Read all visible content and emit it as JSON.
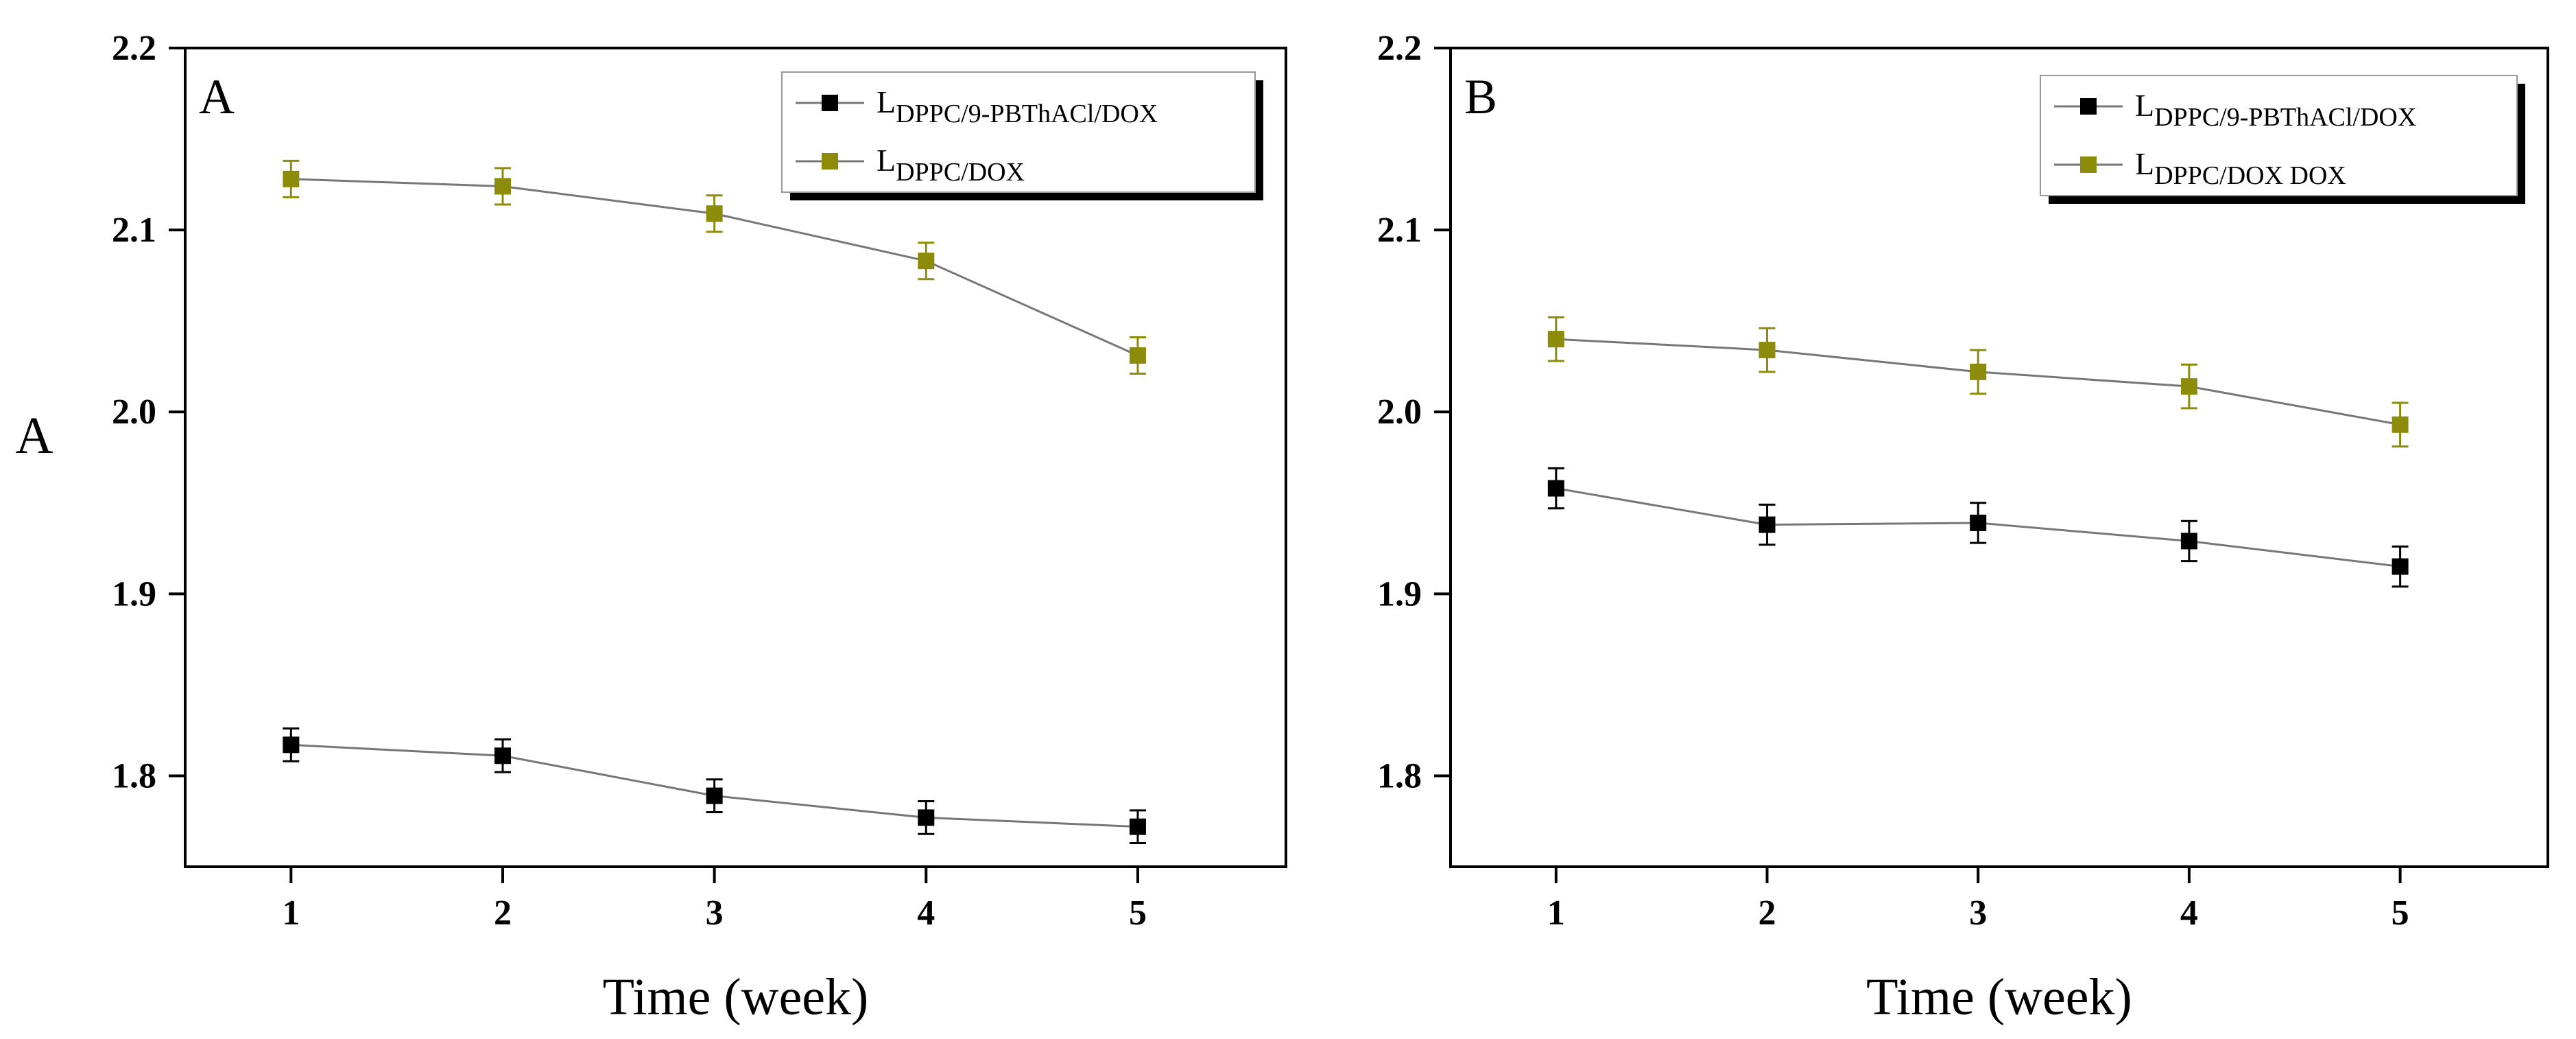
{
  "chart_data": [
    {
      "type": "line",
      "panel_label": "A",
      "title": "",
      "xlabel": "Time (week)",
      "ylabel": "A",
      "x": [
        1,
        2,
        3,
        4,
        5
      ],
      "xlim": [
        0.5,
        5.7
      ],
      "ylim": [
        1.75,
        2.2
      ],
      "xticks": [
        "1",
        "2",
        "3",
        "4",
        "5"
      ],
      "yticks": [
        "1.8",
        "1.9",
        "2.0",
        "2.1",
        "2.2"
      ],
      "legend_position": "top-right",
      "series": [
        {
          "name": "L",
          "subscript": "DPPC/9-PBThACl/DOX",
          "color": "#000000",
          "values": [
            1.817,
            1.811,
            1.789,
            1.777,
            1.772
          ],
          "errors": [
            0.009,
            0.009,
            0.009,
            0.009,
            0.009
          ]
        },
        {
          "name": "L",
          "subscript": "DPPC/DOX",
          "color": "#8c8c0a",
          "values": [
            2.128,
            2.124,
            2.109,
            2.083,
            2.031
          ],
          "errors": [
            0.01,
            0.01,
            0.01,
            0.01,
            0.01
          ]
        }
      ]
    },
    {
      "type": "line",
      "panel_label": "B",
      "title": "",
      "xlabel": "Time (week)",
      "ylabel": "",
      "x": [
        1,
        2,
        3,
        4,
        5
      ],
      "xlim": [
        0.5,
        5.7
      ],
      "ylim": [
        1.75,
        2.2
      ],
      "xticks": [
        "1",
        "2",
        "3",
        "4",
        "5"
      ],
      "yticks": [
        "1.8",
        "1.9",
        "2.0",
        "2.1",
        "2.2"
      ],
      "legend_position": "top-right",
      "series": [
        {
          "name": "L",
          "subscript": "DPPC/9-PBThACl/DOX",
          "color": "#000000",
          "values": [
            1.958,
            1.938,
            1.939,
            1.929,
            1.915
          ],
          "errors": [
            0.011,
            0.011,
            0.011,
            0.011,
            0.011
          ]
        },
        {
          "name": "L",
          "subscript": "DPPC/DOX DOX",
          "color": "#8c8c0a",
          "values": [
            2.04,
            2.034,
            2.022,
            2.014,
            1.993
          ],
          "errors": [
            0.012,
            0.012,
            0.012,
            0.012,
            0.012
          ]
        }
      ]
    }
  ]
}
